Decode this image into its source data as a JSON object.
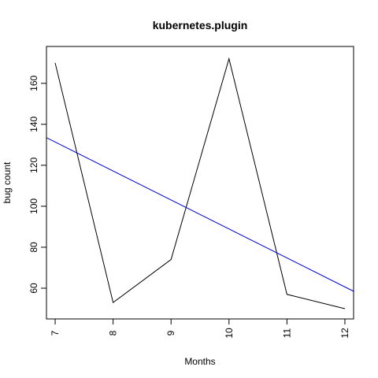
{
  "chart_data": {
    "type": "line",
    "title": "kubernetes.plugin",
    "xlabel": "Months",
    "ylabel": "bug count",
    "x": [
      7,
      8,
      9,
      10,
      11,
      12
    ],
    "xlim": [
      6.85,
      12.15
    ],
    "ylim": [
      45,
      178
    ],
    "x_ticks": [
      7,
      8,
      9,
      10,
      11,
      12
    ],
    "y_ticks": [
      60,
      80,
      100,
      120,
      140,
      160
    ],
    "grid": false,
    "legend": "none",
    "series": [
      {
        "values": [
          170,
          53,
          74,
          172,
          57,
          50
        ],
        "color": "#000000"
      }
    ],
    "trend_line": {
      "x": [
        6.85,
        12.15
      ],
      "y": [
        133.5,
        58.5
      ],
      "color": "#0000cc"
    }
  }
}
